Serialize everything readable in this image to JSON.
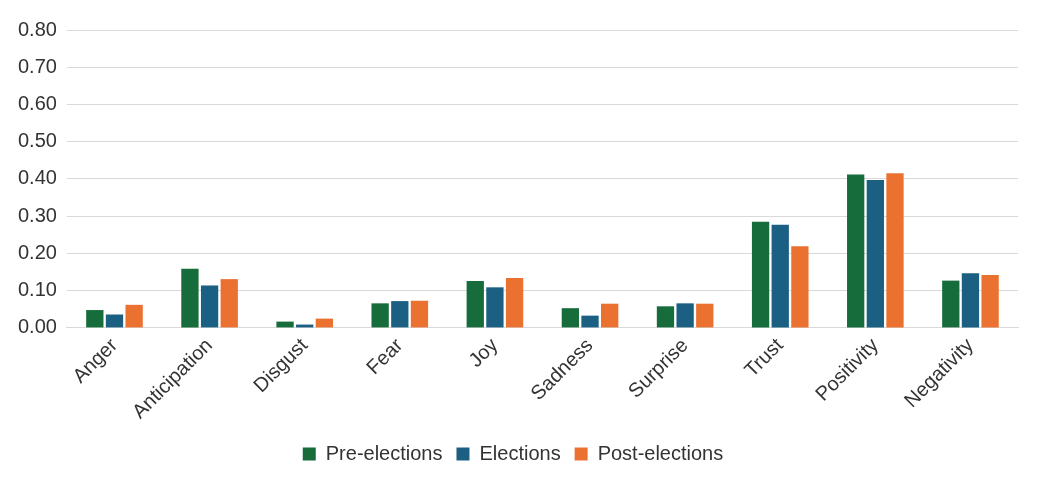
{
  "chart_data": {
    "type": "bar",
    "categories": [
      "Anger",
      "Anticipation",
      "Disgust",
      "Fear",
      "Joy",
      "Sadness",
      "Surprise",
      "Trust",
      "Positivity",
      "Negativity"
    ],
    "series": [
      {
        "name": "Pre-elections",
        "color": "#166d3b",
        "values": [
          0.048,
          0.159,
          0.017,
          0.066,
          0.126,
          0.053,
          0.058,
          0.285,
          0.412,
          0.127
        ]
      },
      {
        "name": "Elections",
        "color": "#1b6083",
        "values": [
          0.036,
          0.114,
          0.009,
          0.072,
          0.109,
          0.033,
          0.066,
          0.277,
          0.397,
          0.147
        ]
      },
      {
        "name": "Post-elections",
        "color": "#eb7130",
        "values": [
          0.062,
          0.131,
          0.025,
          0.073,
          0.134,
          0.065,
          0.065,
          0.219,
          0.415,
          0.142
        ]
      }
    ],
    "ylim": [
      0,
      0.8
    ],
    "yticks": [
      {
        "value": 0,
        "label": "0.00"
      },
      {
        "value": 0.1,
        "label": "0.10"
      },
      {
        "value": 0.2,
        "label": "0.20"
      },
      {
        "value": 0.3,
        "label": "0.30"
      },
      {
        "value": 0.4,
        "label": "0.40"
      },
      {
        "value": 0.5,
        "label": "0.50"
      },
      {
        "value": 0.6,
        "label": "0.60"
      },
      {
        "value": 0.7,
        "label": "0.70"
      },
      {
        "value": 0.8,
        "label": "0.80"
      }
    ],
    "grid": "y",
    "legend": "bottom"
  }
}
